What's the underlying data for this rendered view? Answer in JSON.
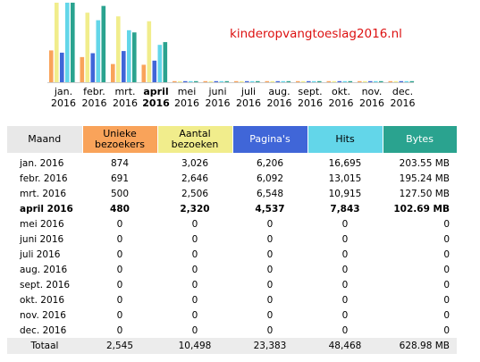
{
  "site_title": "kinderopvangtoeslag2016.nl",
  "colors": {
    "visitors": "#f9a35a",
    "visits": "#f1ed8c",
    "pages": "#4066d8",
    "hits": "#63d6e9",
    "bytes": "#2aa38f"
  },
  "chart_data": {
    "type": "bar",
    "categories": [
      "jan. 2016",
      "febr. 2016",
      "mrt. 2016",
      "april 2016",
      "mei 2016",
      "juni 2016",
      "juli 2016",
      "aug. 2016",
      "sept. 2016",
      "okt. 2016",
      "nov. 2016",
      "dec. 2016"
    ],
    "series": [
      {
        "name": "Unieke bezoekers",
        "values": [
          874,
          691,
          500,
          480,
          0,
          0,
          0,
          0,
          0,
          0,
          0,
          0
        ]
      },
      {
        "name": "Aantal bezoeken",
        "values": [
          3026,
          2646,
          2506,
          2320,
          0,
          0,
          0,
          0,
          0,
          0,
          0,
          0
        ]
      },
      {
        "name": "Pagina's",
        "values": [
          6206,
          6092,
          6548,
          4537,
          0,
          0,
          0,
          0,
          0,
          0,
          0,
          0
        ]
      },
      {
        "name": "Hits",
        "values": [
          16695,
          13015,
          10915,
          7843,
          0,
          0,
          0,
          0,
          0,
          0,
          0,
          0
        ]
      },
      {
        "name": "Bytes",
        "values": [
          203.55,
          195.24,
          127.5,
          102.69,
          0,
          0,
          0,
          0,
          0,
          0,
          0,
          0
        ]
      }
    ]
  },
  "chart_months": [
    {
      "l1": "jan.",
      "l2": "2016"
    },
    {
      "l1": "febr.",
      "l2": "2016"
    },
    {
      "l1": "mrt.",
      "l2": "2016"
    },
    {
      "l1": "april",
      "l2": "2016"
    },
    {
      "l1": "mei",
      "l2": "2016"
    },
    {
      "l1": "juni",
      "l2": "2016"
    },
    {
      "l1": "juli",
      "l2": "2016"
    },
    {
      "l1": "aug.",
      "l2": "2016"
    },
    {
      "l1": "sept.",
      "l2": "2016"
    },
    {
      "l1": "okt.",
      "l2": "2016"
    },
    {
      "l1": "nov.",
      "l2": "2016"
    },
    {
      "l1": "dec.",
      "l2": "2016"
    }
  ],
  "current_month_index": 3,
  "table": {
    "headers": {
      "month": "Maand",
      "visitors_1": "Unieke",
      "visitors_2": "bezoekers",
      "visits_1": "Aantal",
      "visits_2": "bezoeken",
      "pages": "Pagina's",
      "hits": "Hits",
      "bytes": "Bytes"
    },
    "rows": [
      {
        "month": "jan. 2016",
        "visitors": "874",
        "visits": "3,026",
        "pages": "6,206",
        "hits": "16,695",
        "bytes": "203.55 MB"
      },
      {
        "month": "febr. 2016",
        "visitors": "691",
        "visits": "2,646",
        "pages": "6,092",
        "hits": "13,015",
        "bytes": "195.24 MB"
      },
      {
        "month": "mrt. 2016",
        "visitors": "500",
        "visits": "2,506",
        "pages": "6,548",
        "hits": "10,915",
        "bytes": "127.50 MB"
      },
      {
        "month": "april 2016",
        "visitors": "480",
        "visits": "2,320",
        "pages": "4,537",
        "hits": "7,843",
        "bytes": "102.69 MB"
      },
      {
        "month": "mei 2016",
        "visitors": "0",
        "visits": "0",
        "pages": "0",
        "hits": "0",
        "bytes": "0"
      },
      {
        "month": "juni 2016",
        "visitors": "0",
        "visits": "0",
        "pages": "0",
        "hits": "0",
        "bytes": "0"
      },
      {
        "month": "juli 2016",
        "visitors": "0",
        "visits": "0",
        "pages": "0",
        "hits": "0",
        "bytes": "0"
      },
      {
        "month": "aug. 2016",
        "visitors": "0",
        "visits": "0",
        "pages": "0",
        "hits": "0",
        "bytes": "0"
      },
      {
        "month": "sept. 2016",
        "visitors": "0",
        "visits": "0",
        "pages": "0",
        "hits": "0",
        "bytes": "0"
      },
      {
        "month": "okt. 2016",
        "visitors": "0",
        "visits": "0",
        "pages": "0",
        "hits": "0",
        "bytes": "0"
      },
      {
        "month": "nov. 2016",
        "visitors": "0",
        "visits": "0",
        "pages": "0",
        "hits": "0",
        "bytes": "0"
      },
      {
        "month": "dec. 2016",
        "visitors": "0",
        "visits": "0",
        "pages": "0",
        "hits": "0",
        "bytes": "0"
      }
    ],
    "total": {
      "month": "Totaal",
      "visitors": "2,545",
      "visits": "10,498",
      "pages": "23,383",
      "hits": "48,468",
      "bytes": "628.98 MB"
    }
  }
}
